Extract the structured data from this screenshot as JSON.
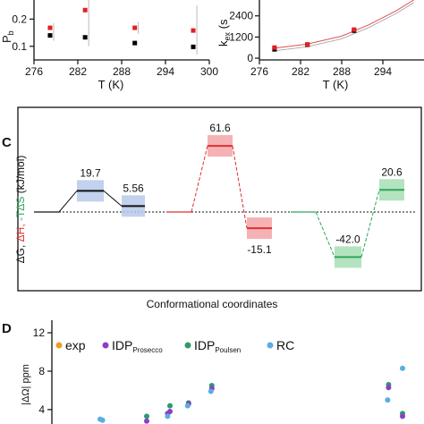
{
  "chart_data": [
    {
      "panel": "left-top",
      "type": "scatter",
      "xlabel": "T (K)",
      "ylabel_main": "P",
      "ylabel_sub": "b",
      "x_ticks": [
        "276",
        "282",
        "288",
        "294",
        "300"
      ],
      "y_ticks": [
        "0.1",
        "0.2"
      ],
      "ylim": [
        0.05,
        0.27
      ],
      "xlim": [
        276,
        300
      ],
      "series": [
        {
          "color": "#000000",
          "points": [
            [
              278.2,
              0.14
            ],
            [
              283,
              0.133
            ],
            [
              289.8,
              0.112
            ],
            [
              297.8,
              0.098
            ]
          ]
        },
        {
          "color": "#e02020",
          "points": [
            [
              278.2,
              0.168
            ],
            [
              283,
              0.233
            ],
            [
              289.8,
              0.168
            ],
            [
              297.8,
              0.158
            ]
          ]
        }
      ],
      "errorbars": [
        [
          278.2,
          0.12,
          0.185
        ],
        [
          283,
          0.1,
          0.27
        ],
        [
          289.8,
          0.145,
          0.19
        ],
        [
          297.8,
          0.07,
          0.25
        ]
      ]
    },
    {
      "panel": "right-top",
      "type": "line",
      "xlabel": "T (K)",
      "ylabel_main": "k",
      "ylabel_sub": "ex",
      "ylabel_rest": " (s",
      "x_ticks": [
        "276",
        "282",
        "288",
        "294",
        "300"
      ],
      "y_ticks": [
        "0",
        "1200",
        "2400"
      ],
      "ylim": [
        -100,
        3300
      ],
      "xlim": [
        276,
        300
      ],
      "series": [
        {
          "color": "#000000",
          "points": [
            [
              278.2,
              500
            ],
            [
              283,
              760
            ],
            [
              289.8,
              1560
            ]
          ]
        },
        {
          "color": "#e02020",
          "points": [
            [
              278.2,
              600
            ],
            [
              283,
              780
            ],
            [
              289.8,
              1620
            ]
          ]
        }
      ],
      "fit_curve": [
        [
          278,
          560
        ],
        [
          283,
          800
        ],
        [
          288,
          1250
        ],
        [
          292,
          1900
        ],
        [
          296,
          2700
        ],
        [
          298.5,
          3300
        ]
      ]
    },
    {
      "panel": "C",
      "type": "diagram",
      "ylabel_parts": [
        "ΔG, ",
        "ΔH, ",
        "-TΔS",
        " (kJ/mol)"
      ],
      "xlabel": "Conformational coordinates",
      "groups": [
        {
          "color": "#111111",
          "band": "#b7c9ea",
          "levels": [
            {
              "value": 19.7,
              "label": "19.7"
            },
            {
              "value": 5.56,
              "label": "5.56"
            }
          ]
        },
        {
          "color": "#e03030",
          "band": "#f2a5a8",
          "levels": [
            {
              "value": 61.6,
              "label": "61.6"
            },
            {
              "value": -15.1,
              "label": "-15.1"
            }
          ]
        },
        {
          "color": "#2ea55a",
          "band": "#a6deb4",
          "levels": [
            {
              "value": -42.0,
              "label": "-42.0"
            },
            {
              "value": 20.6,
              "label": "20.6"
            }
          ]
        }
      ]
    },
    {
      "panel": "D",
      "type": "scatter",
      "ylabel": "|ΔΩ| ppm",
      "y_ticks": [
        "4",
        "8",
        "12"
      ],
      "ylim": [
        2.5,
        12
      ],
      "legend": [
        {
          "label": "exp",
          "sub": "",
          "color": "#e8a020"
        },
        {
          "label": "IDP",
          "sub": "Prosecco",
          "color": "#8a3fc8"
        },
        {
          "label": "IDP",
          "sub": "Poulsen",
          "color": "#2e9a6a"
        },
        {
          "label": "RC",
          "sub": "",
          "color": "#5aaee0"
        }
      ],
      "points": [
        {
          "s": 3,
          "x": 1,
          "y": 3.0
        },
        {
          "s": 3,
          "x": 1.05,
          "y": 2.9
        },
        {
          "s": 2,
          "x": 2,
          "y": 3.3
        },
        {
          "s": 1,
          "x": 2,
          "y": 2.8
        },
        {
          "s": 1,
          "x": 2.45,
          "y": 3.6
        },
        {
          "s": 3,
          "x": 2.45,
          "y": 3.3
        },
        {
          "s": 2,
          "x": 2.5,
          "y": 4.4
        },
        {
          "s": 1,
          "x": 2.5,
          "y": 3.8
        },
        {
          "s": 2,
          "x": 2.9,
          "y": 4.7
        },
        {
          "s": 1,
          "x": 2.9,
          "y": 4.6
        },
        {
          "s": 3,
          "x": 2.88,
          "y": 4.4
        },
        {
          "s": 2,
          "x": 3.4,
          "y": 6.5
        },
        {
          "s": 1,
          "x": 3.4,
          "y": 6.2
        },
        {
          "s": 3,
          "x": 3.38,
          "y": 5.9
        },
        {
          "s": 2,
          "x": 7.2,
          "y": 6.6
        },
        {
          "s": 1,
          "x": 7.2,
          "y": 6.3
        },
        {
          "s": 3,
          "x": 7.18,
          "y": 5.0
        },
        {
          "s": 3,
          "x": 7.5,
          "y": 8.3
        },
        {
          "s": 2,
          "x": 7.5,
          "y": 3.6
        },
        {
          "s": 1,
          "x": 7.5,
          "y": 3.3
        }
      ]
    }
  ],
  "panel_labels": {
    "c": "C",
    "d": "D"
  }
}
